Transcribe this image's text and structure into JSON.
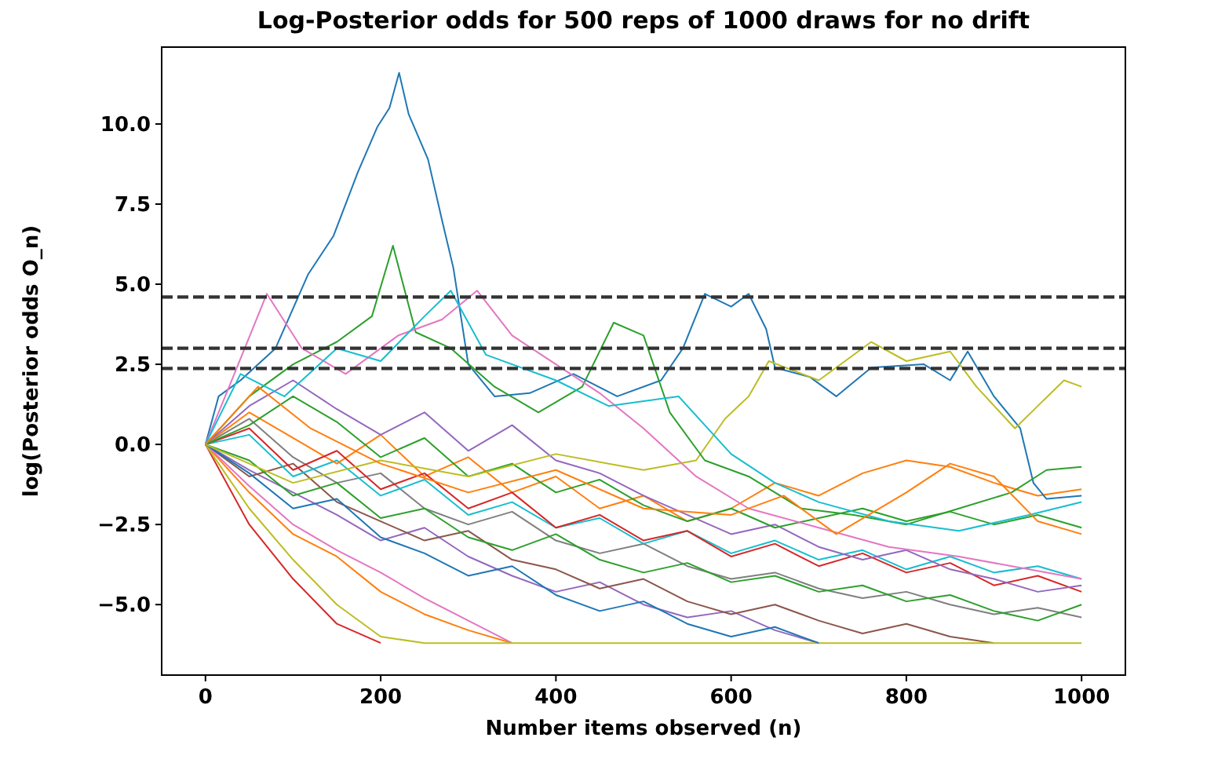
{
  "chart_data": {
    "type": "line",
    "title": "Log-Posterior odds for 500 reps of 1000 draws for no drift",
    "xlabel": "Number items observed (n)",
    "ylabel": "log(Posterior odds O_n)",
    "xlim": [
      -50,
      1050
    ],
    "ylim": [
      -7.2,
      12.4
    ],
    "xticks": [
      0,
      200,
      400,
      600,
      800,
      1000
    ],
    "yticks": [
      {
        "value": -5,
        "label": "−5.0"
      },
      {
        "value": -2.5,
        "label": "−2.5"
      },
      {
        "value": 0,
        "label": "0.0"
      },
      {
        "value": 2.5,
        "label": "2.5"
      },
      {
        "value": 5,
        "label": "5.0"
      },
      {
        "value": 7.5,
        "label": "7.5"
      },
      {
        "value": 10,
        "label": "10.0"
      }
    ],
    "grid": false,
    "marker": "none",
    "line_style": "solid",
    "x": [
      0,
      50,
      100,
      150,
      200,
      250,
      300,
      350,
      400,
      450,
      500,
      550,
      600,
      650,
      700,
      750,
      800,
      850,
      900,
      950,
      1000
    ],
    "series": [
      {
        "color": "#d62728",
        "values": [
          0,
          -2.5,
          -4.2,
          -5.6,
          -6.2,
          null,
          null,
          null,
          null,
          null,
          null,
          null,
          null,
          null,
          null,
          null,
          null,
          null,
          null,
          null,
          null
        ]
      },
      {
        "color": "#ff7f0e",
        "values": [
          0,
          -1.5,
          -2.8,
          -3.5,
          -4.6,
          -5.3,
          -5.8,
          -6.2,
          null,
          null,
          null,
          null,
          null,
          null,
          null,
          null,
          null,
          null,
          null,
          null,
          null
        ]
      },
      {
        "color": "#9467bd",
        "values": [
          0,
          -0.8,
          -1.5,
          -2.2,
          -3.0,
          -2.6,
          -3.5,
          -4.1,
          -4.6,
          -4.3,
          -5.0,
          -5.4,
          -5.2,
          -5.8,
          -6.2,
          null,
          null,
          null,
          null,
          null,
          null
        ]
      },
      {
        "color": "#8c564b",
        "values": [
          0,
          -1.0,
          -0.6,
          -1.8,
          -2.4,
          -3.0,
          -2.7,
          -3.6,
          -3.9,
          -4.5,
          -4.2,
          -4.9,
          -5.3,
          -5.0,
          -5.5,
          -5.9,
          -5.6,
          -6.0,
          -6.2,
          null,
          null
        ]
      },
      {
        "color": "#7f7f7f",
        "values": [
          0,
          0.8,
          -0.4,
          -1.2,
          -0.9,
          -2.0,
          -2.5,
          -2.1,
          -3.0,
          -3.4,
          -3.1,
          -3.8,
          -4.2,
          -4.0,
          -4.5,
          -4.8,
          -4.6,
          -5.0,
          -5.3,
          -5.1,
          -5.4
        ]
      },
      {
        "color": "#2ca02c",
        "values": [
          0,
          -0.5,
          -1.6,
          -1.2,
          -2.3,
          -2.0,
          -2.9,
          -3.3,
          -2.8,
          -3.6,
          -4.0,
          -3.7,
          -4.3,
          -4.1,
          -4.6,
          -4.4,
          -4.9,
          -4.7,
          -5.2,
          -5.5,
          -5.0
        ]
      },
      {
        "color": "#17becf",
        "values": [
          0,
          0.3,
          -1.0,
          -0.5,
          -1.6,
          -1.1,
          -2.2,
          -1.8,
          -2.6,
          -2.3,
          -3.1,
          -2.7,
          -3.4,
          -3.0,
          -3.6,
          -3.3,
          -3.9,
          -3.5,
          -4.0,
          -3.8,
          -4.2
        ]
      },
      {
        "color": "#e377c2",
        "values": [
          0,
          -1.3,
          -2.5,
          -3.3,
          -4.0,
          -4.8,
          -5.5,
          -6.2,
          null,
          null,
          null,
          null,
          null,
          null,
          null,
          null,
          null,
          null,
          null,
          null,
          null
        ]
      },
      {
        "color": "#bcbd22",
        "values": [
          0,
          -2.0,
          -3.6,
          -5.0,
          -6.0,
          -6.2,
          -6.2,
          -6.2,
          -6.2,
          -6.2,
          -6.2,
          -6.2,
          -6.2,
          -6.2,
          -6.2,
          -6.2,
          -6.2,
          -6.2,
          -6.2,
          -6.2,
          -6.2
        ]
      },
      {
        "color": "#1f77b4",
        "values": [
          0,
          -0.9,
          -2.0,
          -1.7,
          -2.9,
          -3.4,
          -4.1,
          -3.8,
          -4.7,
          -5.2,
          -4.9,
          -5.6,
          -6.0,
          -5.7,
          -6.2,
          null,
          null,
          null,
          null,
          null,
          null
        ]
      },
      {
        "color": "#ff7f0e",
        "values": [
          0,
          1.0,
          0.2,
          -0.6,
          0.3,
          -1.0,
          -0.4,
          -1.5,
          -1.0,
          -2.0,
          -1.6,
          -2.4,
          -2.0,
          -1.2,
          -1.6,
          -0.9,
          -0.5,
          -0.7,
          -1.2,
          -1.6,
          -1.4
        ]
      },
      {
        "color": "#d62728",
        "values": [
          0,
          0.5,
          -0.8,
          -0.2,
          -1.4,
          -0.9,
          -2.0,
          -1.5,
          -2.6,
          -2.2,
          -3.0,
          -2.7,
          -3.5,
          -3.1,
          -3.8,
          -3.4,
          -4.0,
          -3.7,
          -4.4,
          -4.1,
          -4.6
        ]
      },
      {
        "color": "#9467bd",
        "values": [
          0,
          1.2,
          2.0,
          1.1,
          0.3,
          1.0,
          -0.2,
          0.6,
          -0.5,
          -0.9,
          -1.6,
          -2.2,
          -2.8,
          -2.5,
          -3.2,
          -3.6,
          -3.3,
          -3.9,
          -4.2,
          -4.6,
          -4.4
        ]
      },
      {
        "color": "#2ca02c",
        "values": [
          0,
          0.6,
          1.5,
          0.7,
          -0.4,
          0.2,
          -1.0,
          -0.6,
          -1.5,
          -1.1,
          -1.9,
          -2.4,
          -2.0,
          -2.6,
          -2.3,
          -2.0,
          -2.4,
          -2.1,
          -2.5,
          -2.2,
          -2.6
        ]
      },
      {
        "color": "#1f77b4",
        "x": [
          0,
          15,
          40,
          80,
          117,
          146,
          174,
          196,
          210,
          221,
          232,
          254,
          270,
          283,
          300,
          330,
          370,
          420,
          470,
          520,
          545,
          570,
          600,
          620,
          640,
          650,
          690,
          720,
          760,
          820,
          850,
          870,
          900,
          930,
          945,
          960,
          1000
        ],
        "values": [
          0,
          1.5,
          2.0,
          3.0,
          5.3,
          6.5,
          8.5,
          9.9,
          10.5,
          11.6,
          10.3,
          8.9,
          7.0,
          5.5,
          2.5,
          1.5,
          1.6,
          2.2,
          1.5,
          2.0,
          3.0,
          4.7,
          4.3,
          4.7,
          3.6,
          2.4,
          2.1,
          1.5,
          2.4,
          2.5,
          2.0,
          2.9,
          1.5,
          0.5,
          -1.2,
          -1.7,
          -1.6
        ]
      },
      {
        "color": "#bcbd22",
        "x": [
          0,
          100,
          200,
          300,
          400,
          500,
          560,
          593,
          620,
          643,
          700,
          760,
          800,
          850,
          880,
          924,
          950,
          980,
          1000
        ],
        "values": [
          0,
          -1.2,
          -0.5,
          -1.0,
          -0.3,
          -0.8,
          -0.5,
          0.8,
          1.5,
          2.6,
          2.0,
          3.2,
          2.6,
          2.9,
          1.8,
          0.5,
          1.2,
          2.0,
          1.8
        ]
      },
      {
        "color": "#2ca02c",
        "x": [
          0,
          50,
          100,
          150,
          190,
          214,
          240,
          280,
          330,
          380,
          430,
          466,
          500,
          530,
          570,
          620,
          680,
          740,
          800,
          860,
          920,
          960,
          1000
        ],
        "values": [
          0,
          1.5,
          2.5,
          3.2,
          4.0,
          6.2,
          3.5,
          3.0,
          1.8,
          1.0,
          1.8,
          3.8,
          3.4,
          1.0,
          -0.5,
          -1.0,
          -2.0,
          -2.2,
          -2.5,
          -2.0,
          -1.5,
          -0.8,
          -0.7
        ]
      },
      {
        "color": "#e377c2",
        "x": [
          0,
          30,
          70,
          110,
          160,
          220,
          270,
          310,
          350,
          400,
          450,
          500,
          560,
          620,
          700,
          780,
          860,
          940,
          1000
        ],
        "values": [
          0,
          2.0,
          4.7,
          3.0,
          2.2,
          3.4,
          3.9,
          4.8,
          3.4,
          2.5,
          1.6,
          0.5,
          -1.0,
          -2.0,
          -2.6,
          -3.2,
          -3.5,
          -3.9,
          -4.2
        ]
      },
      {
        "color": "#17becf",
        "x": [
          0,
          40,
          90,
          150,
          200,
          250,
          280,
          320,
          400,
          460,
          540,
          600,
          650,
          700,
          780,
          860,
          940,
          1000
        ],
        "values": [
          0,
          2.2,
          1.5,
          3.0,
          2.6,
          4.0,
          4.8,
          2.8,
          2.0,
          1.2,
          1.5,
          -0.3,
          -1.2,
          -1.8,
          -2.4,
          -2.7,
          -2.2,
          -1.8
        ]
      },
      {
        "color": "#ff7f0e",
        "x": [
          0,
          60,
          120,
          200,
          300,
          400,
          500,
          600,
          660,
          720,
          800,
          850,
          900,
          950,
          1000
        ],
        "values": [
          0,
          1.8,
          0.5,
          -0.6,
          -1.5,
          -0.8,
          -2.0,
          -2.2,
          -1.6,
          -2.8,
          -1.5,
          -0.6,
          -1.0,
          -2.4,
          -2.8
        ]
      }
    ],
    "ref_lines": [
      {
        "axis": "y",
        "value": 4.6,
        "color": "#333333",
        "line_style": "dashed"
      },
      {
        "axis": "y",
        "value": 3.0,
        "color": "#333333",
        "line_style": "dashed"
      },
      {
        "axis": "y",
        "value": 2.37,
        "color": "#333333",
        "line_style": "dashed"
      }
    ]
  }
}
